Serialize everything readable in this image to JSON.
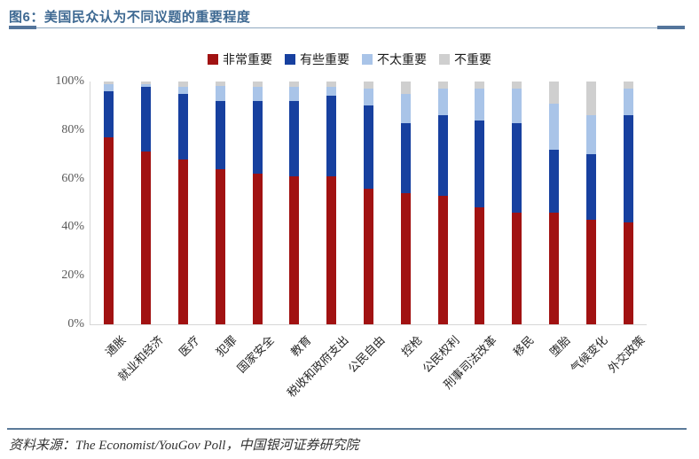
{
  "figure": {
    "title": "图6：美国民众认为不同议题的重要程度",
    "source": "资料来源：The Economist/YouGov Poll，中国银河证券研究院"
  },
  "colors": {
    "title_text": "#3E6992",
    "title_rule_thin": "#8FA8C0",
    "title_rule_caps": "#54759B",
    "source_rule": "#5B7A99",
    "axis_line": "#d6d6d6",
    "very_important": "#A11212",
    "somewhat_important": "#17409F",
    "not_too_important": "#A9C4E8",
    "not_important": "#CFCFCF"
  },
  "chart_data": {
    "type": "bar",
    "stacked": true,
    "title": "图6：美国民众认为不同议题的重要程度",
    "xlabel": "",
    "ylabel": "",
    "ylim": [
      0,
      100
    ],
    "grid": false,
    "legend_position": "top",
    "y_ticks": [
      "0%",
      "20%",
      "40%",
      "60%",
      "80%",
      "100%"
    ],
    "categories": [
      "通胀",
      "就业和经济",
      "医疗",
      "犯罪",
      "国家安全",
      "教育",
      "税收和政府支出",
      "公民自由",
      "控枪",
      "公民权利",
      "刑事司法改革",
      "移民",
      "堕胎",
      "气候变化",
      "外交政策"
    ],
    "series": [
      {
        "name": "非常重要",
        "color": "#A11212",
        "values": [
          77,
          71,
          68,
          64,
          62,
          61,
          61,
          56,
          54,
          53,
          48,
          46,
          46,
          43,
          42
        ]
      },
      {
        "name": "有些重要",
        "color": "#17409F",
        "values": [
          19,
          27,
          27,
          28,
          30,
          31,
          33,
          34,
          29,
          33,
          36,
          37,
          26,
          27,
          44
        ]
      },
      {
        "name": "不太重要",
        "color": "#A9C4E8",
        "values": [
          3,
          1,
          3,
          6,
          6,
          6,
          4,
          7,
          12,
          11,
          13,
          14,
          19,
          16,
          11
        ]
      },
      {
        "name": "不重要",
        "color": "#CFCFCF",
        "values": [
          1,
          1,
          2,
          2,
          2,
          2,
          2,
          3,
          5,
          3,
          3,
          3,
          9,
          14,
          3
        ]
      }
    ]
  }
}
